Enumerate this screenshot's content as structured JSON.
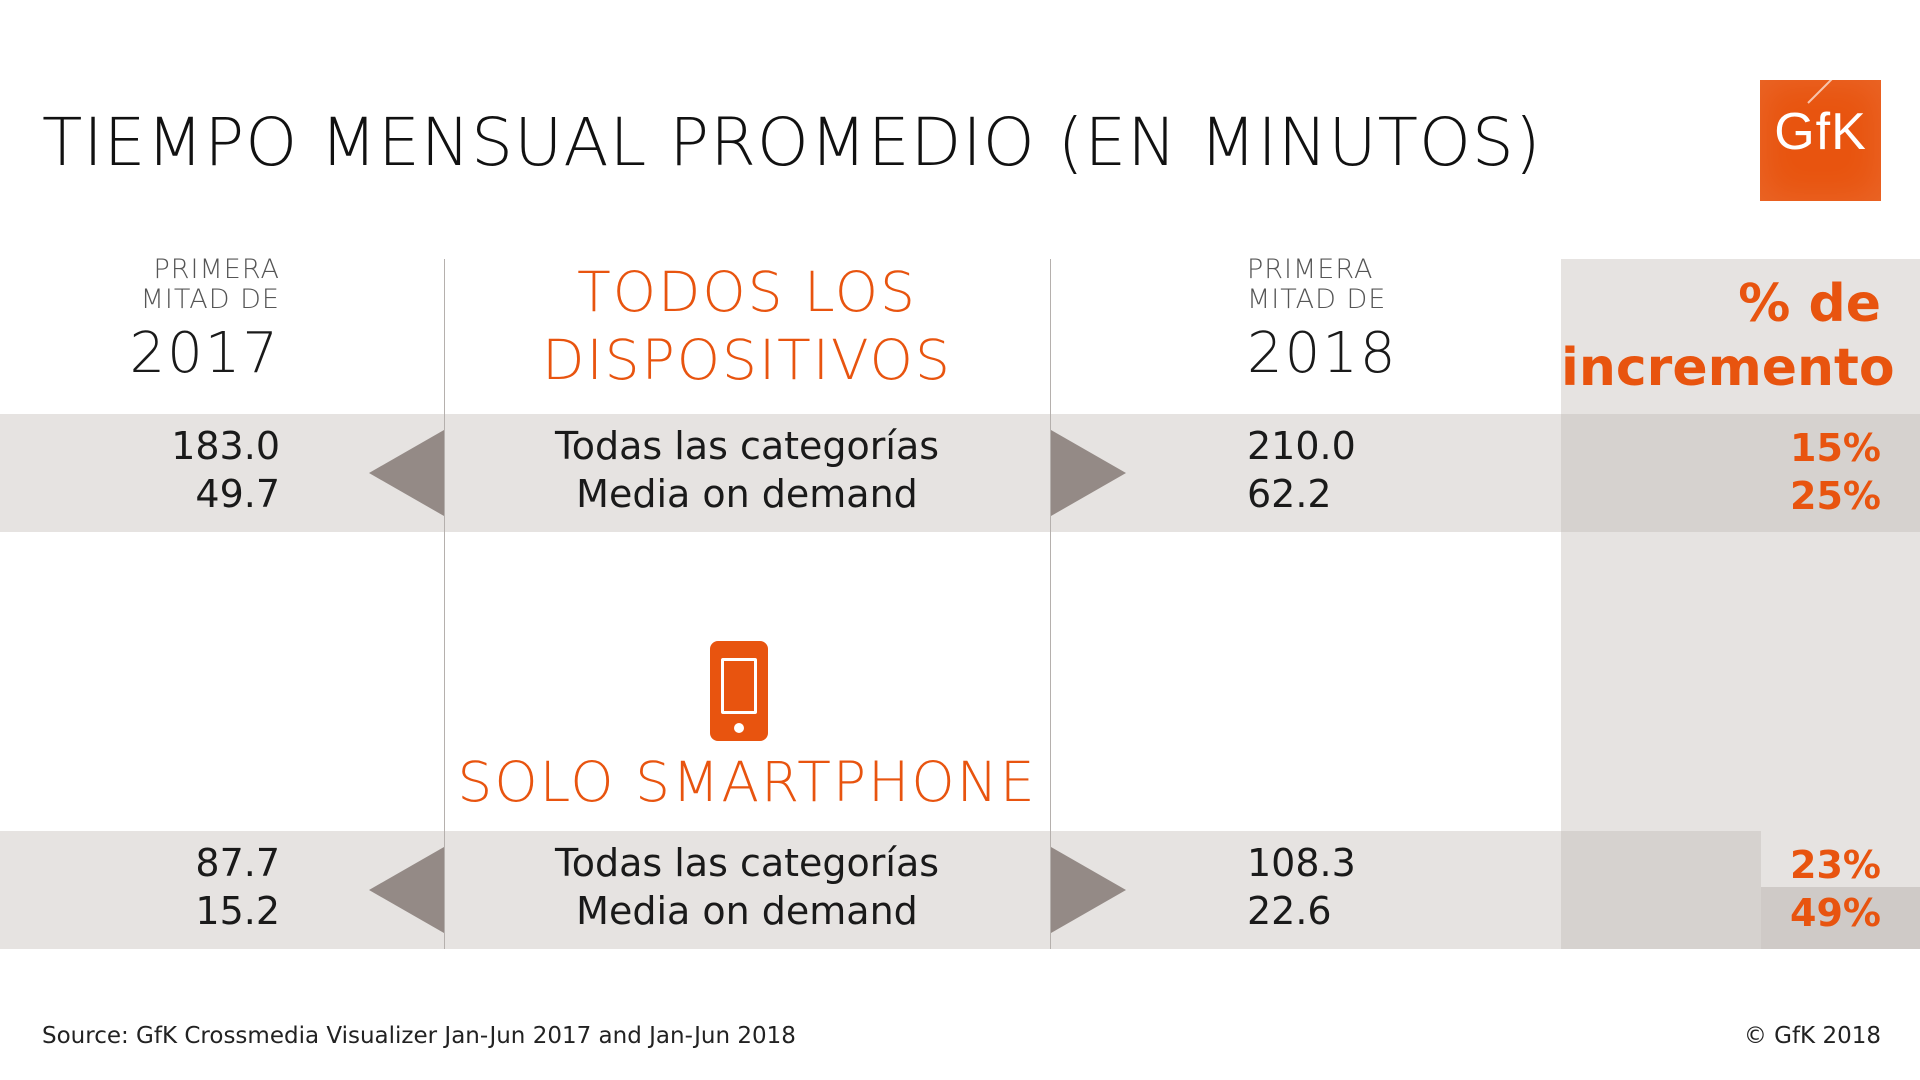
{
  "title": "TIEMPO MENSUAL PROMEDIO (EN MINUTOS)",
  "logo": {
    "text": "GfK",
    "color": "#e8540f"
  },
  "columns": {
    "left": {
      "line1": "PRIMERA",
      "line2": "MITAD DE",
      "year": "2017"
    },
    "right": {
      "line1": "PRIMERA",
      "line2": "MITAD DE",
      "year": "2018"
    },
    "pct": {
      "line1": "% de",
      "line2": "incremento"
    }
  },
  "sections": [
    {
      "heading_line1": "TODOS LOS",
      "heading_line2": "DISPOSITIVOS",
      "rows": [
        {
          "label": "Todas las categorías",
          "v2017": "183.0",
          "v2018": "210.0",
          "pct": "15%"
        },
        {
          "label": "Media on demand",
          "v2017": "49.7",
          "v2018": "62.2",
          "pct": "25%"
        }
      ]
    },
    {
      "heading": "SOLO SMARTPHONE",
      "icon": "smartphone-icon",
      "rows": [
        {
          "label": "Todas las categorías",
          "v2017": "87.7",
          "v2018": "108.3",
          "pct": "23%"
        },
        {
          "label": "Media on demand",
          "v2017": "15.2",
          "v2018": "22.6",
          "pct": "49%"
        }
      ]
    }
  ],
  "footer": {
    "source": "Source: GfK Crossmedia Visualizer Jan-Jun 2017 and Jan-Jun 2018",
    "copyright": "© GfK 2018"
  },
  "colors": {
    "accent": "#e8540f",
    "band": "#e6e3e1",
    "arrow": "#948a86"
  }
}
